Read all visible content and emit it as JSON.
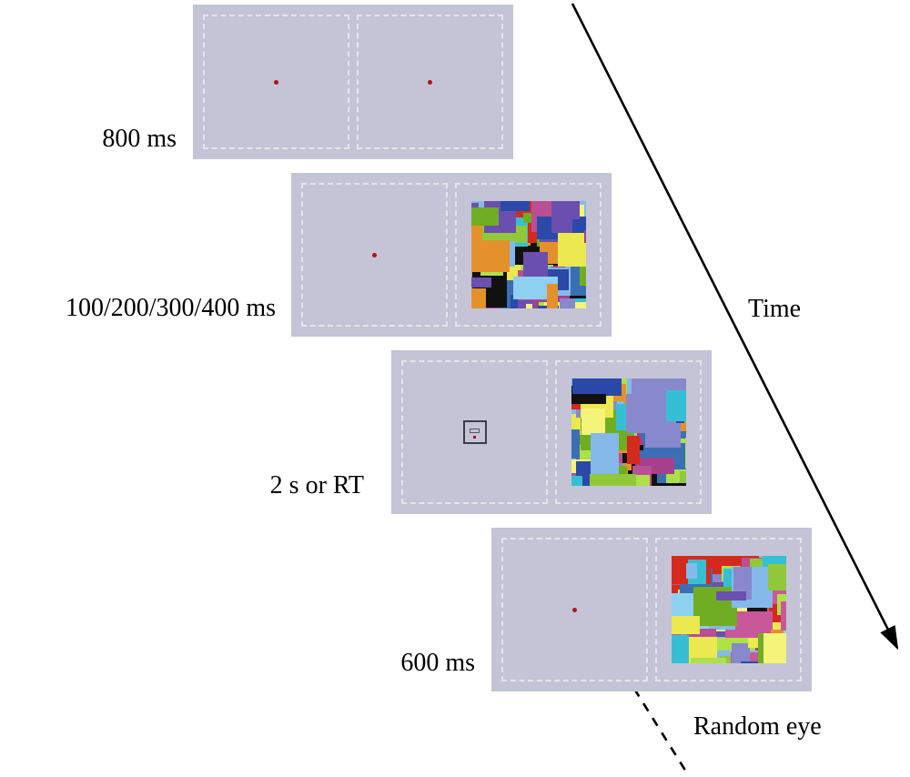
{
  "stages": [
    {
      "label": "800 ms",
      "left_content": "fixation-dot",
      "right_content": "fixation-dot"
    },
    {
      "label": "100/200/300/400 ms",
      "left_content": "fixation-dot",
      "right_content": "mondrian-mask"
    },
    {
      "label": "2 s or RT",
      "left_content": "probe-target",
      "right_content": "mondrian-mask"
    },
    {
      "label": "600 ms",
      "left_content": "fixation-dot",
      "right_content": "mondrian-mask"
    }
  ],
  "annotations": {
    "time": "Time",
    "random_eye": "Random eye"
  },
  "colors": {
    "panel_bg": "#c4c4d6",
    "screen_border": "#e4e4ee",
    "fixation_dot": "#b5121b",
    "arrow": "#000000",
    "mondrian_base": "#85b9e9",
    "mondrian_palette": [
      "#3b6fb5",
      "#85b9e9",
      "#ece84f",
      "#6fae22",
      "#d42a1e",
      "#bb4f93",
      "#6b4fae",
      "#36bfd4",
      "#e3922b",
      "#111111",
      "#a63f8c",
      "#8dd0f0",
      "#aee04a",
      "#8888cc",
      "#f4f47a",
      "#2a49a8",
      "#90c83a",
      "#c8589a"
    ]
  }
}
